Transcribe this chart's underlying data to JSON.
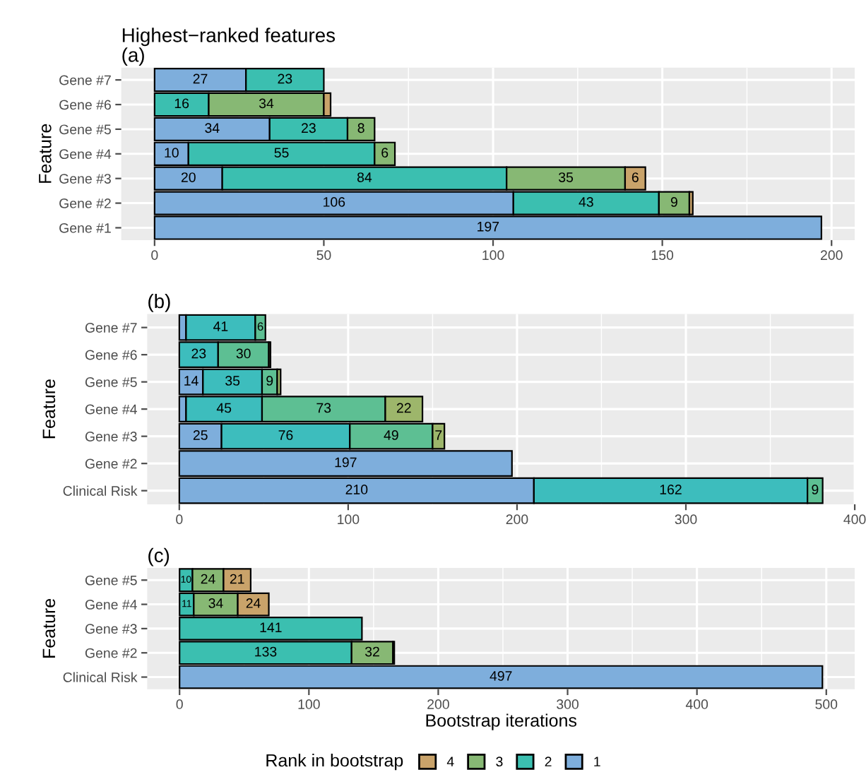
{
  "chart_data": [
    {
      "type": "bar",
      "orientation": "horizontal",
      "stacked": true,
      "title": "Highest−ranked features",
      "subtitle": "(a)",
      "ylabel": "Feature",
      "categories": [
        "Gene #7",
        "Gene #6",
        "Gene #5",
        "Gene #4",
        "Gene #3",
        "Gene #2",
        "Gene #1"
      ],
      "xlim": [
        -9.85,
        206.85
      ],
      "xticks": [
        0,
        50,
        100,
        150,
        200
      ],
      "grid": true,
      "data_labels": true,
      "series": [
        {
          "color": "#7eaedc",
          "values": [
            27,
            null,
            34,
            10,
            20,
            106,
            197
          ]
        },
        {
          "color": "#3bbfb0",
          "values": [
            23,
            16,
            23,
            55,
            84,
            43,
            null
          ]
        },
        {
          "color": "#87b874",
          "values": [
            null,
            34,
            8,
            6,
            35,
            9,
            null
          ]
        },
        {
          "color": "#c9a36a",
          "values": [
            null,
            2,
            null,
            null,
            6,
            1,
            null
          ],
          "value_labels": [
            null,
            null,
            null,
            null,
            "6",
            null,
            null
          ]
        }
      ]
    },
    {
      "type": "bar",
      "orientation": "horizontal",
      "stacked": true,
      "title": "(b)",
      "ylabel": "Feature",
      "categories": [
        "Gene #7",
        "Gene #6",
        "Gene #5",
        "Gene #4",
        "Gene #3",
        "Gene #2",
        "Clinical Risk"
      ],
      "xlim": [
        -19,
        400
      ],
      "xticks": [
        0,
        100,
        200,
        300,
        400
      ],
      "grid": true,
      "data_labels": true,
      "series": [
        {
          "color": "#7eaedc",
          "values": [
            4,
            null,
            14,
            4,
            25,
            197,
            210
          ],
          "value_labels": [
            null,
            null,
            "14",
            null,
            "25",
            "197",
            "210"
          ]
        },
        {
          "color": "#3dbdbd",
          "values": [
            41,
            23,
            35,
            45,
            76,
            null,
            162
          ]
        },
        {
          "color": "#5dbf93",
          "values": [
            6,
            30,
            9,
            73,
            49,
            null,
            9
          ]
        },
        {
          "color": "#9db66b",
          "values": [
            null,
            1,
            2,
            22,
            7,
            null,
            null
          ],
          "value_labels": [
            null,
            null,
            null,
            "22",
            "7",
            null,
            null
          ]
        }
      ]
    },
    {
      "type": "bar",
      "orientation": "horizontal",
      "stacked": true,
      "title": "(c)",
      "ylabel": "Feature",
      "xlabel": "Bootstrap iterations",
      "categories": [
        "Gene #5",
        "Gene #4",
        "Gene #3",
        "Gene #2",
        "Clinical Risk"
      ],
      "xlim": [
        -25,
        522
      ],
      "xticks": [
        0,
        100,
        200,
        300,
        400,
        500
      ],
      "grid": true,
      "data_labels": true,
      "legend": "bottom",
      "legend_title": "Rank in bootstrap",
      "series": [
        {
          "name": "1",
          "color": "#7eaedc",
          "values": [
            null,
            null,
            null,
            null,
            497
          ]
        },
        {
          "name": "2",
          "color": "#3bbfb0",
          "values": [
            10,
            11,
            141,
            133,
            null
          ]
        },
        {
          "name": "3",
          "color": "#87b874",
          "values": [
            24,
            34,
            null,
            32,
            null
          ]
        },
        {
          "name": "4",
          "color": "#c9a36a",
          "values": [
            21,
            24,
            null,
            1,
            null
          ],
          "value_labels": [
            "21",
            "24",
            null,
            null,
            null
          ]
        }
      ]
    }
  ]
}
